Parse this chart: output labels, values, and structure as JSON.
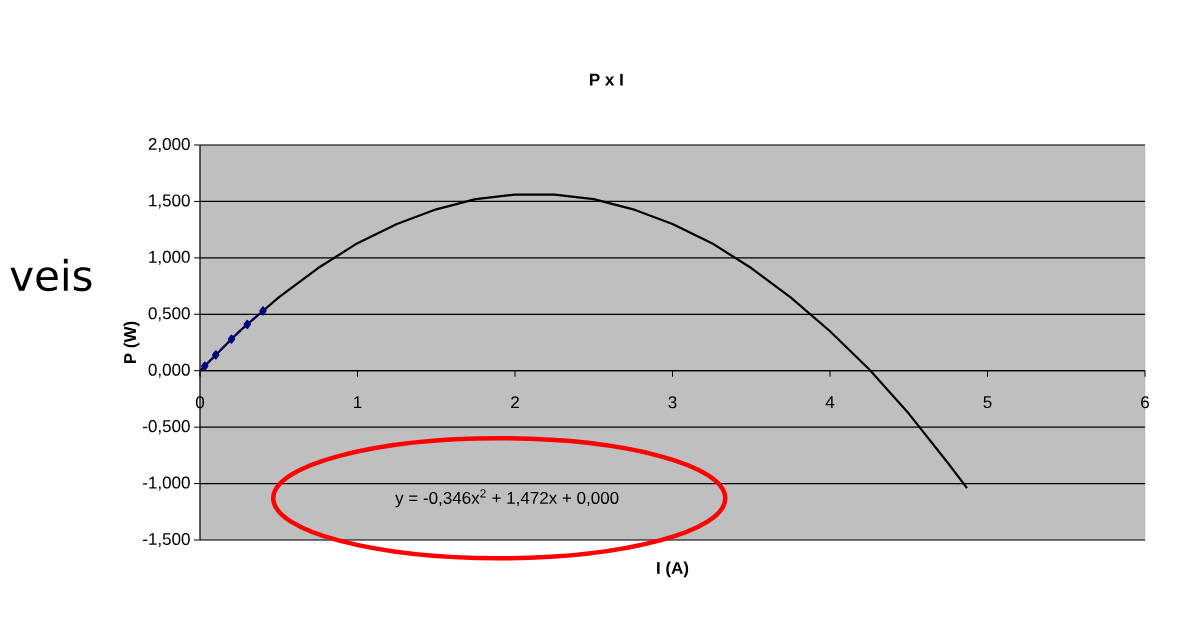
{
  "chart_data": {
    "type": "line",
    "title": "P x I",
    "xlabel": "I (A)",
    "ylabel": "P (W)",
    "xlim": [
      0,
      6
    ],
    "xticks": [
      0,
      1,
      2,
      3,
      4,
      5,
      6
    ],
    "ylim": [
      -1.5,
      2
    ],
    "yticks": [
      {
        "value": -1.5,
        "label": "-1,500"
      },
      {
        "value": -1,
        "label": "-1,000"
      },
      {
        "value": -0.5,
        "label": "-0,500"
      },
      {
        "value": 0,
        "label": "0,000"
      },
      {
        "value": 0.5,
        "label": "0,500"
      },
      {
        "value": 1,
        "label": "1,000"
      },
      {
        "value": 1.5,
        "label": "1,500"
      },
      {
        "value": 2,
        "label": "2,000"
      }
    ],
    "grid": "y",
    "series": [
      {
        "color": "#000000",
        "marker": "none",
        "line_style": "solid",
        "x": [
          0,
          0.25,
          0.5,
          0.75,
          1,
          1.25,
          1.5,
          1.75,
          2,
          2.25,
          2.5,
          2.75,
          3,
          3.25,
          3.5,
          3.75,
          4,
          4.25,
          4.5,
          4.75,
          4.87
        ],
        "values": [
          0,
          0.35,
          0.65,
          0.91,
          1.13,
          1.3,
          1.43,
          1.52,
          1.56,
          1.56,
          1.52,
          1.43,
          1.3,
          1.13,
          0.91,
          0.65,
          0.35,
          0.01,
          -0.38,
          -0.82,
          -1.04
        ]
      },
      {
        "color": "#000080",
        "marker": "diamond",
        "line_style": "dashed",
        "x": [
          0.03,
          0.1,
          0.2,
          0.3,
          0.4
        ],
        "values": [
          0.04,
          0.14,
          0.28,
          0.41,
          0.53
        ]
      }
    ],
    "annotations": [
      "y = -0,346x$^{2}$ + 1,472x + 0,000",
      "veis"
    ]
  }
}
